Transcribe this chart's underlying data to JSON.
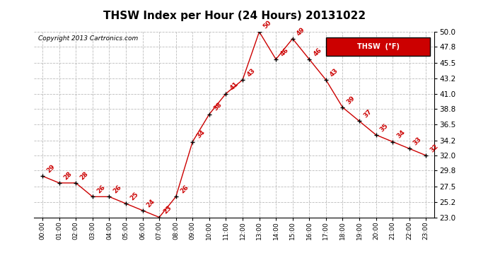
{
  "title": "THSW Index per Hour (24 Hours) 20131022",
  "copyright": "Copyright 2013 Cartronics.com",
  "legend_label": "THSW  (°F)",
  "hours": [
    "00:00",
    "01:00",
    "02:00",
    "03:00",
    "04:00",
    "05:00",
    "06:00",
    "07:00",
    "08:00",
    "09:00",
    "10:00",
    "11:00",
    "12:00",
    "13:00",
    "14:00",
    "15:00",
    "16:00",
    "17:00",
    "18:00",
    "19:00",
    "20:00",
    "21:00",
    "22:00",
    "23:00"
  ],
  "values": [
    29,
    28,
    28,
    26,
    26,
    25,
    24,
    23,
    26,
    34,
    38,
    41,
    43,
    50,
    46,
    49,
    46,
    43,
    39,
    37,
    35,
    34,
    33,
    32
  ],
  "line_color": "#cc0000",
  "marker_color": "#000000",
  "label_color": "#cc0000",
  "bg_color": "#ffffff",
  "grid_color": "#bbbbbb",
  "ylim_min": 23.0,
  "ylim_max": 50.0,
  "yticks": [
    23.0,
    25.2,
    27.5,
    29.8,
    32.0,
    34.2,
    36.5,
    38.8,
    41.0,
    43.2,
    45.5,
    47.8,
    50.0
  ],
  "title_fontsize": 11,
  "legend_bg": "#cc0000",
  "legend_text_color": "#ffffff"
}
